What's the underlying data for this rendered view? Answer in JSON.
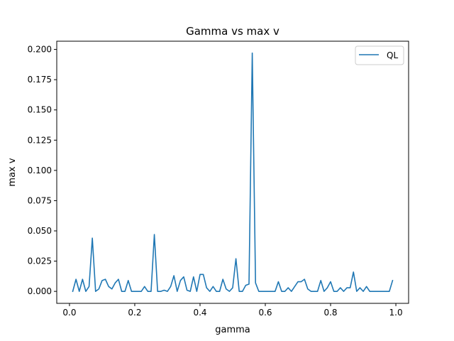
{
  "chart_data": {
    "type": "line",
    "title": "Gamma vs max v",
    "xlabel": "gamma",
    "ylabel": "max v",
    "xlim": [
      -0.039,
      1.039
    ],
    "ylim": [
      -0.0099,
      0.2068
    ],
    "xticks": [
      0.0,
      0.2,
      0.4,
      0.6,
      0.8,
      1.0
    ],
    "xtick_labels": [
      "0.0",
      "0.2",
      "0.4",
      "0.6",
      "0.8",
      "1.0"
    ],
    "yticks": [
      0.0,
      0.025,
      0.05,
      0.075,
      0.1,
      0.125,
      0.15,
      0.175,
      0.2
    ],
    "ytick_labels": [
      "0.000",
      "0.025",
      "0.050",
      "0.075",
      "0.100",
      "0.125",
      "0.150",
      "0.175",
      "0.200"
    ],
    "grid": false,
    "legend_position": "top-right",
    "colors": {
      "series": "#1f77b4",
      "axes": "#000000",
      "background": "#ffffff"
    },
    "series": [
      {
        "name": "QL",
        "x": [
          0.01,
          0.02,
          0.03,
          0.04,
          0.05,
          0.06,
          0.07,
          0.08,
          0.09,
          0.1,
          0.11,
          0.12,
          0.13,
          0.14,
          0.15,
          0.16,
          0.17,
          0.18,
          0.19,
          0.2,
          0.21,
          0.22,
          0.23,
          0.24,
          0.25,
          0.26,
          0.27,
          0.28,
          0.29,
          0.3,
          0.31,
          0.32,
          0.33,
          0.34,
          0.35,
          0.36,
          0.37,
          0.38,
          0.39,
          0.4,
          0.41,
          0.42,
          0.43,
          0.44,
          0.45,
          0.46,
          0.47,
          0.48,
          0.49,
          0.5,
          0.51,
          0.52,
          0.53,
          0.54,
          0.55,
          0.56,
          0.57,
          0.58,
          0.59,
          0.6,
          0.61,
          0.62,
          0.63,
          0.64,
          0.65,
          0.66,
          0.67,
          0.68,
          0.69,
          0.7,
          0.71,
          0.72,
          0.73,
          0.74,
          0.75,
          0.76,
          0.77,
          0.78,
          0.79,
          0.8,
          0.81,
          0.82,
          0.83,
          0.84,
          0.85,
          0.86,
          0.87,
          0.88,
          0.89,
          0.9,
          0.91,
          0.92,
          0.93,
          0.94,
          0.95,
          0.96,
          0.97,
          0.98,
          0.99
        ],
        "values": [
          0.0,
          0.01,
          0.0,
          0.01,
          0.0,
          0.004,
          0.044,
          0.0,
          0.002,
          0.009,
          0.01,
          0.004,
          0.002,
          0.007,
          0.01,
          0.0,
          0.0,
          0.009,
          0.0,
          0.0,
          0.0,
          0.0,
          0.004,
          0.0,
          0.0,
          0.047,
          0.0,
          0.0,
          0.001,
          0.0,
          0.004,
          0.013,
          0.0,
          0.009,
          0.012,
          0.001,
          0.0,
          0.012,
          0.0,
          0.014,
          0.014,
          0.003,
          0.0,
          0.004,
          0.0,
          0.0,
          0.01,
          0.002,
          0.0,
          0.003,
          0.027,
          0.0,
          0.0,
          0.005,
          0.006,
          0.197,
          0.007,
          0.0,
          0.0,
          0.0,
          0.0,
          0.0,
          0.0,
          0.008,
          0.0,
          0.0,
          0.003,
          0.0,
          0.004,
          0.008,
          0.008,
          0.01,
          0.002,
          0.0,
          0.0,
          0.0,
          0.009,
          0.0,
          0.003,
          0.008,
          0.0,
          0.0,
          0.003,
          0.0,
          0.003,
          0.003,
          0.016,
          0.0,
          0.003,
          0.0,
          0.004,
          0.0,
          0.0,
          0.0,
          0.0,
          0.0,
          0.0,
          0.0,
          0.009
        ]
      }
    ]
  }
}
